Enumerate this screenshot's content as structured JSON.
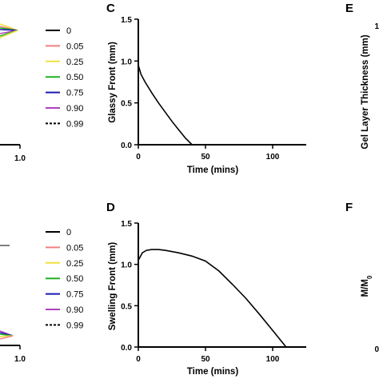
{
  "figure": {
    "left_legend_top": {
      "entries": [
        {
          "label": "0",
          "color": "#000000",
          "dash": "solid"
        },
        {
          "label": "0.05",
          "color": "#f08080",
          "dash": "solid"
        },
        {
          "label": "0.25",
          "color": "#f0e040",
          "dash": "solid"
        },
        {
          "label": "0.50",
          "color": "#20b020",
          "dash": "solid"
        },
        {
          "label": "0.75",
          "color": "#1a1ab0",
          "dash": "solid"
        },
        {
          "label": "0.90",
          "color": "#b040c0",
          "dash": "solid"
        },
        {
          "label": "0.99",
          "color": "#000000",
          "dash": "dashed"
        }
      ]
    },
    "left_legend_bottom": {
      "entries": [
        {
          "label": "0",
          "color": "#000000",
          "dash": "solid"
        },
        {
          "label": "0.05",
          "color": "#f08080",
          "dash": "solid"
        },
        {
          "label": "0.25",
          "color": "#f0e040",
          "dash": "solid"
        },
        {
          "label": "0.50",
          "color": "#20b020",
          "dash": "solid"
        },
        {
          "label": "0.75",
          "color": "#1a1ab0",
          "dash": "solid"
        },
        {
          "label": "0.90",
          "color": "#b040c0",
          "dash": "solid"
        },
        {
          "label": "0.99",
          "color": "#000000",
          "dash": "dashed"
        }
      ]
    },
    "left_top_xtick": "1.0",
    "left_bottom_xtick": "1.0",
    "right_edge": {
      "top_letter": "E",
      "top_ylabel": "Gel Layer Thickness (mm)",
      "top_tick": "1",
      "bottom_letter": "F",
      "bottom_ylabel": "M/M0",
      "bottom_tick": "0"
    }
  },
  "chart_data": [
    {
      "panel": "C",
      "type": "line",
      "title": "",
      "xlabel": "Time (mins)",
      "ylabel": "Glassy Front (mm)",
      "xlim": [
        0,
        125
      ],
      "ylim": [
        0,
        1.5
      ],
      "xticks": [
        "0",
        "50",
        "100"
      ],
      "yticks": [
        "0.0",
        "0.5",
        "1.0",
        "1.5"
      ],
      "grid": false,
      "series": [
        {
          "color": "#000000",
          "x": [
            0,
            2,
            5,
            10,
            15,
            20,
            25,
            30,
            35,
            40
          ],
          "y": [
            0.95,
            0.84,
            0.75,
            0.62,
            0.5,
            0.39,
            0.28,
            0.18,
            0.08,
            0.0
          ]
        }
      ]
    },
    {
      "panel": "D",
      "type": "line",
      "title": "",
      "xlabel": "Time (mins)",
      "ylabel": "Swelling Front (mm)",
      "xlim": [
        0,
        125
      ],
      "ylim": [
        0,
        1.5
      ],
      "xticks": [
        "0",
        "50",
        "100"
      ],
      "yticks": [
        "0.0",
        "0.5",
        "1.0",
        "1.5"
      ],
      "grid": false,
      "series": [
        {
          "color": "#000000",
          "x": [
            0,
            3,
            6,
            10,
            15,
            20,
            30,
            40,
            50,
            60,
            70,
            80,
            90,
            100,
            110
          ],
          "y": [
            1.05,
            1.14,
            1.17,
            1.18,
            1.18,
            1.17,
            1.14,
            1.1,
            1.04,
            0.92,
            0.76,
            0.59,
            0.4,
            0.2,
            0.0
          ]
        }
      ]
    }
  ]
}
